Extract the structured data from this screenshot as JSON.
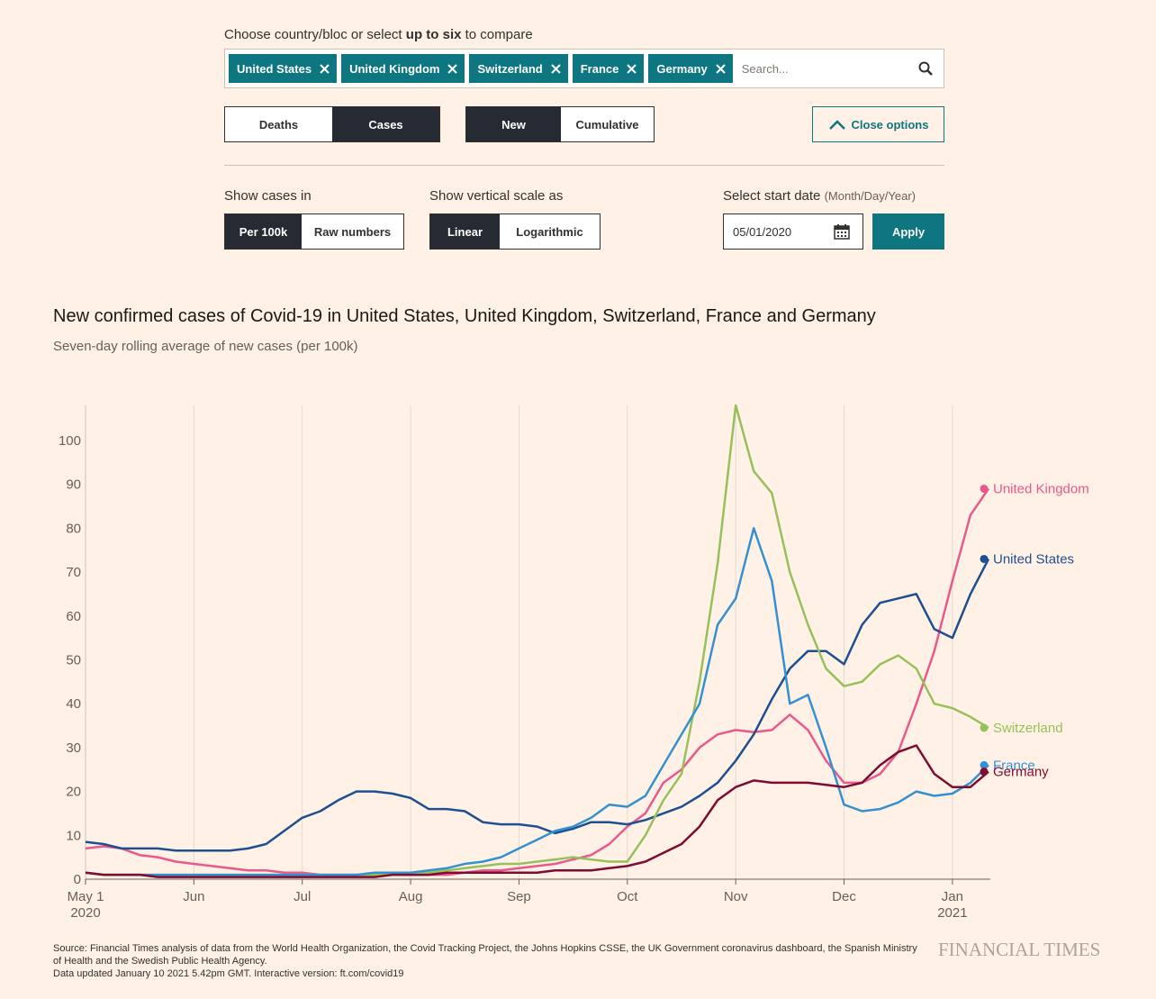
{
  "selector": {
    "prompt": "Choose country/bloc or select ",
    "prompt_bold": "up to six",
    "prompt_end": " to compare",
    "chips": [
      "United States",
      "United Kingdom",
      "Switzerland",
      "France",
      "Germany"
    ],
    "search_placeholder": "Search..."
  },
  "toggles": [
    {
      "options": [
        "Deaths",
        "Cases"
      ],
      "active": 1
    },
    {
      "options": [
        "New",
        "Cumulative"
      ],
      "active": 0
    }
  ],
  "close_options": "Close options",
  "settings": [
    {
      "label": "Show cases in",
      "options": [
        "Per 100k",
        "Raw numbers"
      ],
      "active": 0
    },
    {
      "label": "Show vertical scale as",
      "options": [
        "Linear",
        "Logarithmic"
      ],
      "active": 0
    }
  ],
  "start_date": {
    "label": "Select start date",
    "hint": "(Month/Day/Year)",
    "value": "05/01/2020",
    "button": "Apply"
  },
  "chart_data": {
    "type": "line",
    "title": "New confirmed cases of Covid-19 in United States, United Kingdom, Switzerland, France and Germany",
    "subtitle": "Seven-day rolling average of new cases (per 100k)",
    "categories": [
      "May 1\n2020",
      null,
      null,
      null,
      null,
      null,
      "Jun",
      null,
      null,
      null,
      null,
      null,
      "Jul",
      null,
      null,
      null,
      null,
      null,
      "Aug",
      null,
      null,
      null,
      null,
      null,
      "Sep",
      null,
      null,
      null,
      null,
      null,
      "Oct",
      null,
      null,
      null,
      null,
      null,
      "Nov",
      null,
      null,
      null,
      null,
      null,
      "Dec",
      null,
      null,
      null,
      null,
      null,
      "Jan\n2021",
      null,
      null
    ],
    "series": [
      {
        "name": "United Kingdom",
        "color": "#e9598c",
        "values": [
          7,
          7.5,
          7,
          5.5,
          5,
          4,
          3.5,
          3,
          2.5,
          2,
          2,
          1.5,
          1.5,
          1,
          1,
          1,
          1,
          1,
          1,
          1,
          1,
          1.5,
          2,
          2,
          2.5,
          3,
          3.5,
          4.5,
          5.5,
          8,
          12,
          15,
          22,
          25,
          30,
          33,
          34,
          33.5,
          34,
          37.5,
          34,
          27,
          22,
          22,
          24,
          29,
          40,
          52,
          68,
          83,
          89
        ]
      },
      {
        "name": "United States",
        "color": "#1d4f91",
        "values": [
          8.5,
          8,
          7,
          7,
          7,
          6.5,
          6.5,
          6.5,
          6.5,
          7,
          8,
          11,
          14,
          15.5,
          18,
          20,
          20,
          19.5,
          18.5,
          16,
          16,
          15.5,
          13,
          12.5,
          12.5,
          12,
          10.5,
          11.5,
          13,
          13,
          12.5,
          13.5,
          15,
          16.5,
          19,
          22,
          27,
          33,
          41,
          48,
          52,
          52,
          49,
          58,
          63,
          64,
          65,
          57,
          55,
          65,
          73
        ]
      },
      {
        "name": "Switzerland",
        "color": "#96c15a",
        "values": [
          1.5,
          1,
          1,
          1,
          1,
          1,
          1,
          1,
          1,
          1,
          1,
          1,
          1,
          1,
          1,
          1,
          1,
          1.5,
          1.5,
          1.5,
          2,
          2.5,
          3,
          3.5,
          3.5,
          4,
          4.5,
          5,
          4.5,
          4,
          4,
          10,
          18,
          24,
          45,
          72,
          108,
          93,
          88,
          70,
          58,
          48,
          44,
          45,
          49,
          51,
          48,
          40,
          39,
          37,
          34.5
        ]
      },
      {
        "name": "France",
        "color": "#3491d1",
        "values": [
          1.5,
          1,
          1,
          1,
          1,
          1,
          1,
          1,
          1,
          1,
          1,
          1,
          1,
          1,
          1,
          1,
          1.5,
          1.5,
          1.5,
          2,
          2.5,
          3.5,
          4,
          5,
          7,
          9,
          11,
          12,
          14,
          17,
          16.5,
          19,
          26,
          33,
          40,
          58,
          64,
          80,
          68,
          40,
          42,
          30,
          17,
          15.5,
          16,
          17.5,
          20,
          19,
          19.5,
          22,
          26
        ]
      },
      {
        "name": "Germany",
        "color": "#7d0b32",
        "values": [
          1.5,
          1,
          1,
          1,
          0.5,
          0.5,
          0.5,
          0.5,
          0.5,
          0.5,
          0.5,
          0.5,
          0.5,
          0.5,
          0.5,
          0.5,
          0.5,
          1,
          1,
          1,
          1.5,
          1.5,
          1.5,
          1.5,
          1.5,
          1.5,
          2,
          2,
          2,
          2.5,
          3,
          4,
          6,
          8,
          12,
          18,
          21,
          22.5,
          22,
          22,
          22,
          21.5,
          21,
          22,
          26,
          29,
          30.5,
          24,
          21,
          21,
          24.5
        ]
      }
    ],
    "ylim": [
      0,
      108
    ],
    "yticks": [
      0,
      10,
      20,
      30,
      40,
      50,
      60,
      70,
      80,
      90,
      100
    ],
    "xgrid": true,
    "ygrid": false
  },
  "source": [
    "Source: Financial Times analysis of data from the World Health Organization, the Covid Tracking Project, the Johns Hopkins CSSE, the UK Government coronavirus dashboard, the Spanish Ministry of Health and the Swedish Public Health Agency.",
    "Data updated January 10 2021 5.42pm GMT. Interactive version: ft.com/covid19"
  ],
  "logo": "FINANCIAL TIMES"
}
